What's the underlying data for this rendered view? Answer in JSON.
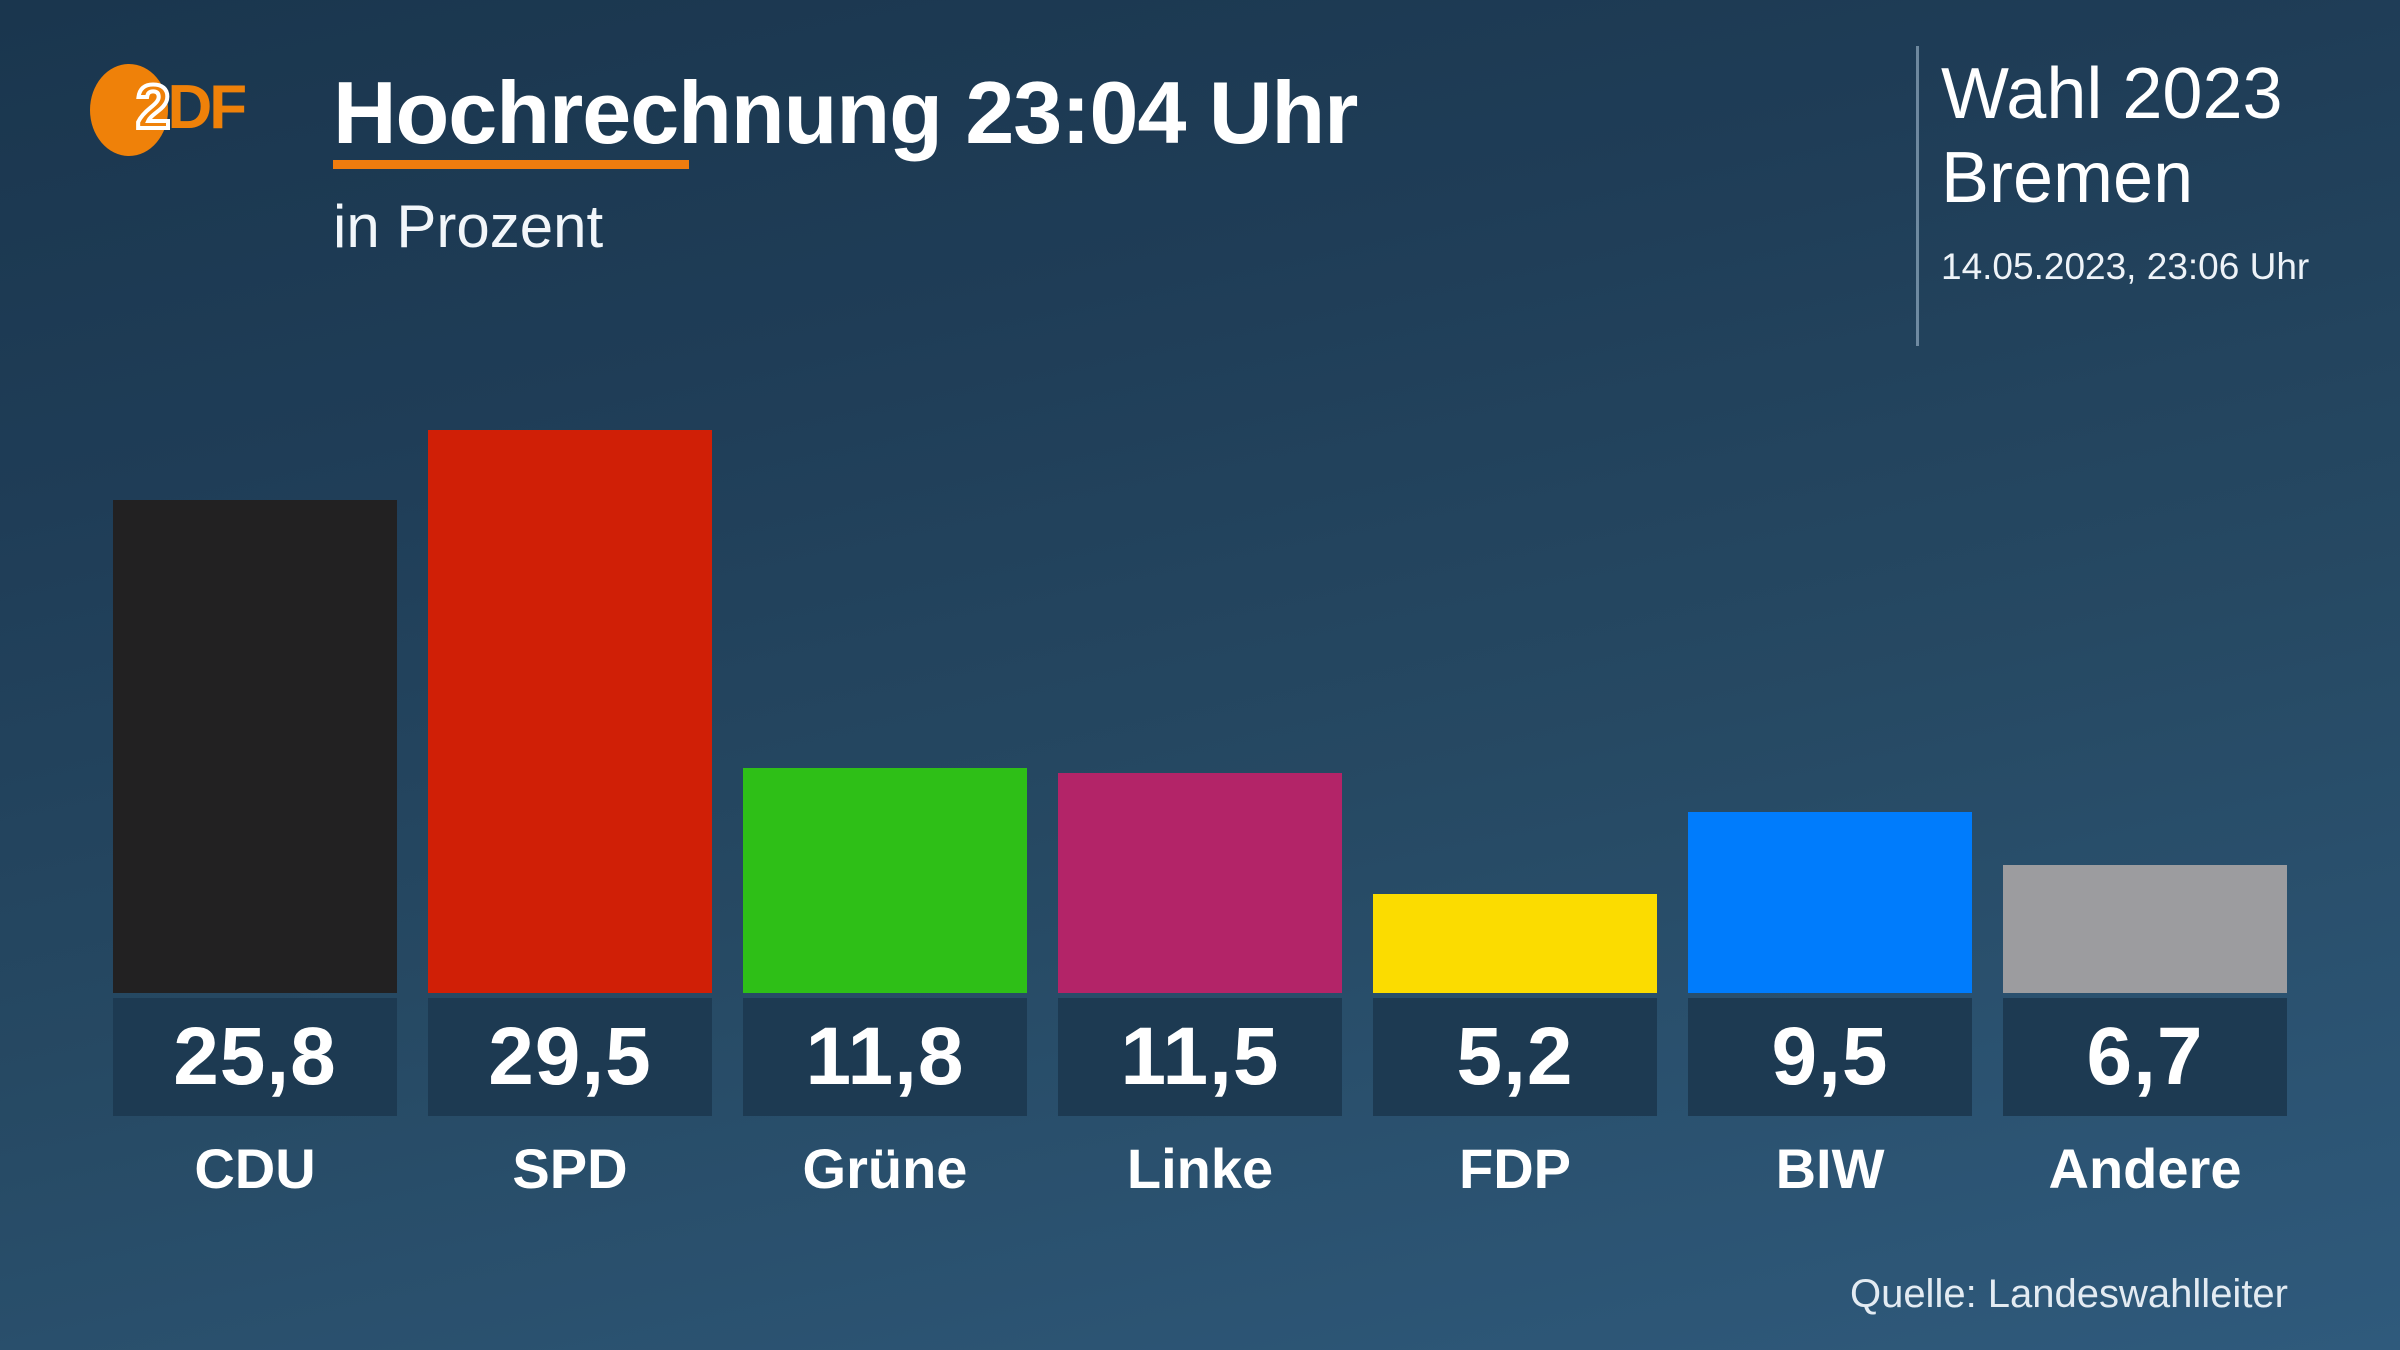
{
  "header": {
    "logo": {
      "name": "ZDF",
      "part1": "2",
      "part2": "DF"
    },
    "title": "Hochrechnung 23:04 Uhr",
    "subtitle": "in Prozent",
    "right": {
      "line1": "Wahl 2023",
      "line2": "Bremen",
      "datetime": "14.05.2023, 23:06 Uhr"
    }
  },
  "chart_data": {
    "type": "bar",
    "title": "Hochrechnung 23:04 Uhr",
    "subtitle": "in Prozent",
    "unit": "Prozent",
    "categories": [
      "CDU",
      "SPD",
      "Grüne",
      "Linke",
      "FDP",
      "BIW",
      "Andere"
    ],
    "values": [
      25.8,
      29.5,
      11.8,
      11.5,
      5.2,
      9.5,
      6.7
    ],
    "value_labels": [
      "25,8",
      "29,5",
      "11,8",
      "11,5",
      "5,2",
      "9,5",
      "6,7"
    ],
    "bar_colors": [
      "#222122",
      "#d01f06",
      "#2ebf17",
      "#b32468",
      "#fbdc00",
      "#007cfc",
      "#9c9c9f"
    ],
    "ylim": [
      0,
      31
    ],
    "grid": false,
    "legend": "none",
    "value_box_color": "#1d3a52",
    "label_color": "#ffffff"
  },
  "footer": {
    "source": "Quelle: Landeswahlleiter"
  },
  "colors": {
    "background_top": "#1a364e",
    "background_bottom": "#2f5a7c",
    "accent_orange": "#ee7c0e",
    "text": "#ffffff"
  }
}
